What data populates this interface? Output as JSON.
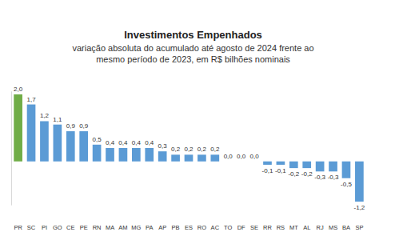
{
  "chart_data": {
    "type": "bar",
    "title": "Investimentos Empenhados",
    "subtitle": [
      "variação absoluta do acumulado até agosto de 2024 frente ao",
      "mesmo período de 2023, em R$ bilhões nominais"
    ],
    "categories": [
      "PR",
      "SC",
      "PI",
      "GO",
      "CE",
      "PE",
      "RN",
      "MA",
      "AM",
      "MG",
      "PA",
      "AP",
      "PB",
      "ES",
      "RO",
      "AC",
      "TO",
      "DF",
      "SE",
      "RR",
      "RS",
      "MT",
      "AL",
      "RJ",
      "MS",
      "BA",
      "SP"
    ],
    "values": [
      2.0,
      1.7,
      1.2,
      1.1,
      0.9,
      0.9,
      0.5,
      0.4,
      0.4,
      0.4,
      0.4,
      0.3,
      0.2,
      0.2,
      0.2,
      0.2,
      0.0,
      0.0,
      0.0,
      -0.1,
      -0.1,
      -0.2,
      -0.2,
      -0.3,
      -0.3,
      -0.5,
      -1.2
    ],
    "value_labels": [
      "2,0",
      "1,7",
      "1,2",
      "1,1",
      "0,9",
      "0,9",
      "0,5",
      "0,4",
      "0,4",
      "0,4",
      "0,4",
      "0,3",
      "0,2",
      "0,2",
      "0,2",
      "0,2",
      "0,0",
      "0,0",
      "0,0",
      "-0,1",
      "-0,1",
      "-0,2",
      "-0,2",
      "-0,3",
      "-0,3",
      "-0,5",
      "-1,2"
    ],
    "colors": [
      "#70ad47",
      "#5b9bd5",
      "#5b9bd5",
      "#5b9bd5",
      "#5b9bd5",
      "#5b9bd5",
      "#5b9bd5",
      "#5b9bd5",
      "#5b9bd5",
      "#5b9bd5",
      "#5b9bd5",
      "#5b9bd5",
      "#5b9bd5",
      "#5b9bd5",
      "#5b9bd5",
      "#5b9bd5",
      "#5b9bd5",
      "#5b9bd5",
      "#5b9bd5",
      "#5b9bd5",
      "#5b9bd5",
      "#5b9bd5",
      "#5b9bd5",
      "#5b9bd5",
      "#5b9bd5",
      "#5b9bd5",
      "#5b9bd5"
    ],
    "ylim": [
      -1.3,
      2.1
    ],
    "data_labels": true,
    "tick_labels": "x",
    "grid": false
  }
}
